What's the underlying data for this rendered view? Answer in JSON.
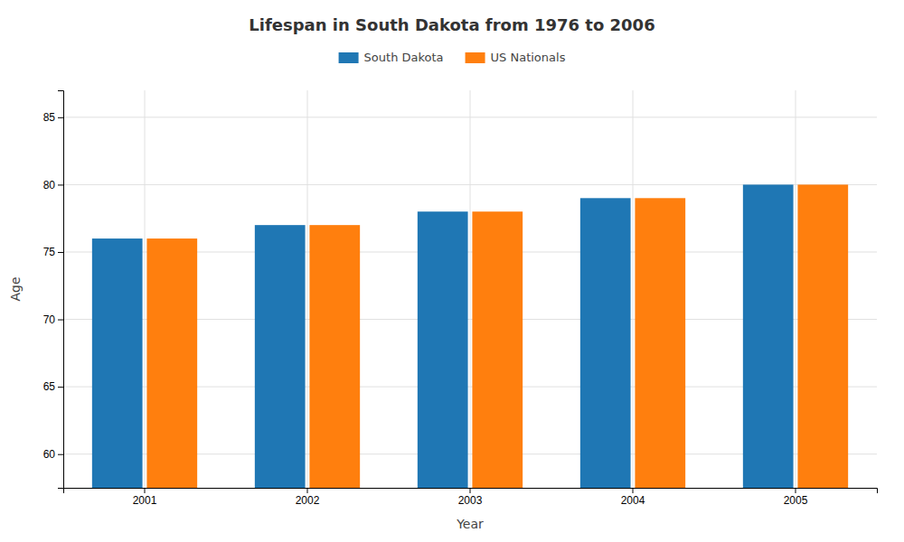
{
  "chart_data": {
    "type": "bar",
    "title": "Lifespan in South Dakota from 1976 to 2006",
    "xlabel": "Year",
    "ylabel": "Age",
    "categories": [
      "2001",
      "2002",
      "2003",
      "2004",
      "2005"
    ],
    "series": [
      {
        "name": "South Dakota",
        "values": [
          76,
          77,
          78,
          79,
          80
        ]
      },
      {
        "name": "US Nationals",
        "values": [
          76,
          77,
          78,
          79,
          80
        ]
      }
    ],
    "ylim": [
      57.5,
      87
    ],
    "yticks": [
      60,
      65,
      70,
      75,
      80,
      85
    ],
    "grid": true,
    "legend": "top"
  }
}
